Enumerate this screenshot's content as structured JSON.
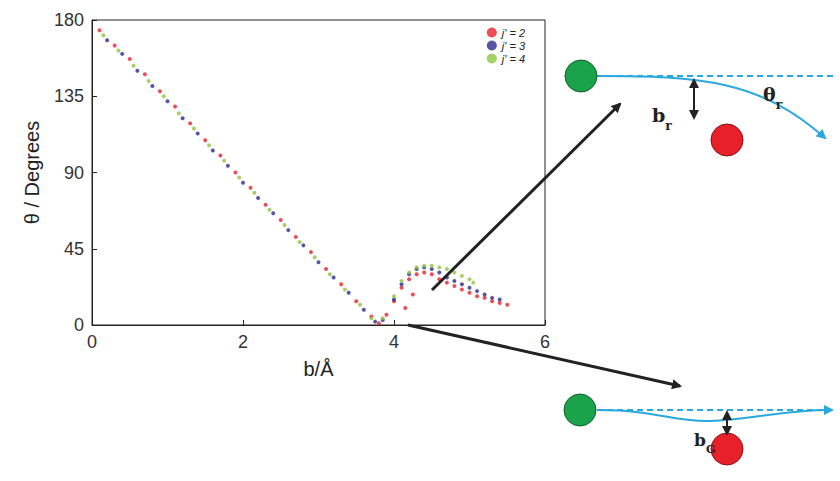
{
  "chart_data": {
    "type": "scatter",
    "x_label": "b/Å",
    "y_label": "θ / Degrees",
    "xlim": [
      0,
      6
    ],
    "xticks": [
      0,
      2,
      4,
      6
    ],
    "ylim": [
      0,
      180
    ],
    "yticks": [
      0,
      45,
      90,
      135,
      180
    ],
    "legend": "top-right",
    "marker": "circle",
    "series": [
      {
        "name": "j' = 2",
        "color": "#e8202a",
        "x": [
          0.1,
          0.3,
          0.5,
          0.7,
          0.9,
          1.1,
          1.3,
          1.5,
          1.7,
          1.9,
          2.1,
          2.3,
          2.5,
          2.7,
          2.9,
          3.1,
          3.3,
          3.5,
          3.7,
          3.8,
          3.9,
          4.0,
          4.1,
          4.15,
          4.2,
          4.25,
          4.3,
          4.4,
          4.5,
          4.6,
          4.7,
          4.8,
          4.9,
          5.0,
          5.1,
          5.2,
          5.3,
          5.4,
          5.5
        ],
        "values": [
          174,
          165,
          157,
          148,
          138,
          129,
          119,
          109,
          100,
          90,
          81,
          71,
          62,
          52,
          43,
          33,
          24,
          14,
          5,
          1,
          6,
          14,
          22,
          10,
          27,
          18,
          30,
          31,
          30,
          27,
          25,
          23,
          21,
          19,
          17,
          16,
          14,
          13,
          12
        ]
      },
      {
        "name": "j' = 3",
        "color": "#2b2a8c",
        "x": [
          0.2,
          0.4,
          0.6,
          0.8,
          1.0,
          1.2,
          1.4,
          1.6,
          1.8,
          2.0,
          2.2,
          2.4,
          2.6,
          2.8,
          3.0,
          3.2,
          3.4,
          3.6,
          3.75,
          3.85,
          4.0,
          4.1,
          4.2,
          4.3,
          4.4,
          4.5,
          4.6,
          4.7,
          4.8,
          4.9,
          5.0,
          5.1,
          5.2,
          5.3,
          5.4
        ],
        "values": [
          168,
          160,
          150,
          141,
          132,
          122,
          113,
          103,
          94,
          84,
          75,
          66,
          56,
          47,
          37,
          28,
          19,
          9,
          2,
          3,
          15,
          24,
          30,
          33,
          34,
          33,
          31,
          28,
          26,
          24,
          22,
          20,
          18,
          16,
          15
        ]
      },
      {
        "name": "j' = 4",
        "color": "#8dc63f",
        "x": [
          0.15,
          0.35,
          0.55,
          0.75,
          0.95,
          1.15,
          1.35,
          1.55,
          1.75,
          1.95,
          2.15,
          2.35,
          2.55,
          2.75,
          2.95,
          3.15,
          3.35,
          3.55,
          3.7,
          3.85,
          4.0,
          4.1,
          4.2,
          4.3,
          4.4,
          4.5,
          4.6,
          4.7,
          4.8,
          4.9,
          5.0,
          5.05
        ],
        "values": [
          171,
          162,
          153,
          144,
          135,
          125,
          116,
          106,
          97,
          87,
          78,
          68,
          59,
          49,
          40,
          30,
          21,
          12,
          4,
          4,
          17,
          26,
          31,
          34,
          35,
          35,
          34,
          33,
          31,
          29,
          27,
          25
        ]
      }
    ]
  },
  "diagram": {
    "rebound": {
      "b_label": {
        "base": "b",
        "sub": "r"
      },
      "angle_label": {
        "base": "θ",
        "sub": "r"
      }
    },
    "glory": {
      "b_label": {
        "base": "b",
        "sub": "G"
      }
    }
  }
}
